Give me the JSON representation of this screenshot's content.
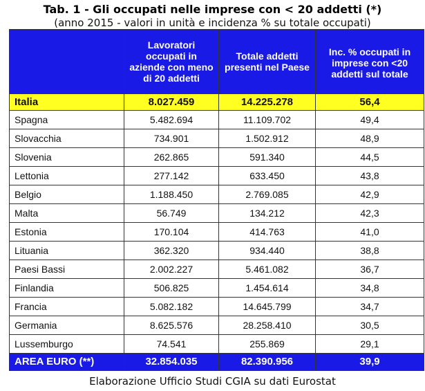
{
  "title": "Tab. 1 - Gli occupati nelle imprese con < 20 addetti (*)",
  "subtitle": "(anno 2015 - valori in unità e incidenza % su totale occupati)",
  "columns": [
    "",
    "Lavoratori occupati in aziende con meno di 20 addetti",
    "Totale addetti presenti nel Paese",
    "Inc. % occupati in imprese con <20 addetti sul totale"
  ],
  "italia": {
    "country": "Italia",
    "workers": "8.027.459",
    "total": "14.225.278",
    "pct": "56,4"
  },
  "rows": [
    {
      "country": "Spagna",
      "workers": "5.482.694",
      "total": "11.109.702",
      "pct": "49,4"
    },
    {
      "country": "Slovacchia",
      "workers": "734.901",
      "total": "1.502.912",
      "pct": "48,9"
    },
    {
      "country": "Slovenia",
      "workers": "262.865",
      "total": "591.340",
      "pct": "44,5"
    },
    {
      "country": "Lettonia",
      "workers": "277.142",
      "total": "633.450",
      "pct": "43,8"
    },
    {
      "country": "Belgio",
      "workers": "1.188.450",
      "total": "2.769.085",
      "pct": "42,9"
    },
    {
      "country": "Malta",
      "workers": "56.749",
      "total": "134.212",
      "pct": "42,3"
    },
    {
      "country": "Estonia",
      "workers": "170.104",
      "total": "414.763",
      "pct": "41,0"
    },
    {
      "country": "Lituania",
      "workers": "362.320",
      "total": "934.440",
      "pct": "38,8"
    },
    {
      "country": "Paesi Bassi",
      "workers": "2.002.227",
      "total": "5.461.082",
      "pct": "36,7"
    },
    {
      "country": "Finlandia",
      "workers": "506.825",
      "total": "1.454.614",
      "pct": "34,8"
    },
    {
      "country": "Francia",
      "workers": "5.082.182",
      "total": "14.645.799",
      "pct": "34,7"
    },
    {
      "country": "Germania",
      "workers": "8.625.576",
      "total": "28.258.410",
      "pct": "30,5"
    },
    {
      "country": "Lussemburgo",
      "workers": "74.541",
      "total": "255.869",
      "pct": "29,1"
    }
  ],
  "total": {
    "country": "AREA EURO (**)",
    "workers": "32.854.035",
    "total": "82.390.956",
    "pct": "39,9"
  },
  "source": "Elaborazione Ufficio Studi CGIA su dati Eurostat",
  "colors": {
    "header_blue": "#1a1ae6",
    "highlight_yellow": "#ffff22"
  }
}
